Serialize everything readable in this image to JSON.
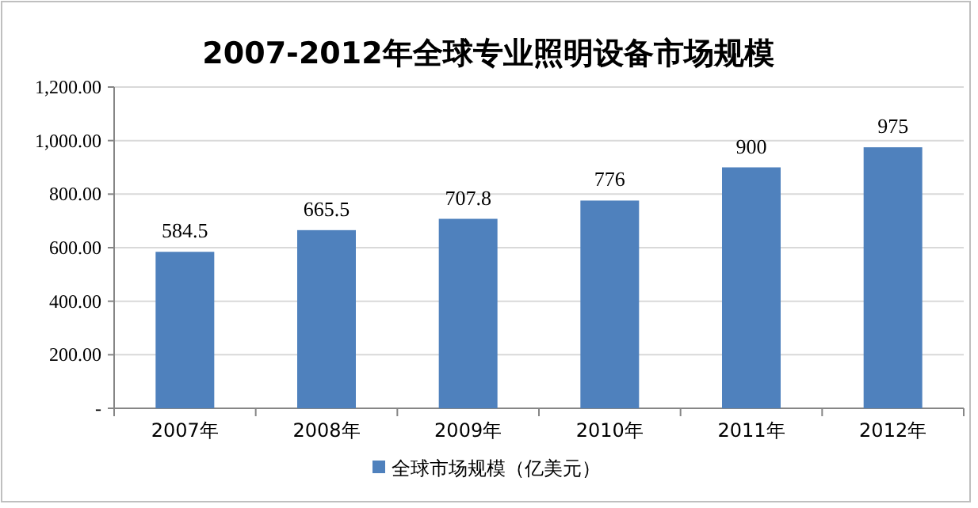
{
  "chart_data": {
    "type": "bar",
    "title": "2007-2012年全球专业照明设备市场规模",
    "categories": [
      "2007年",
      "2008年",
      "2009年",
      "2010年",
      "2011年",
      "2012年"
    ],
    "series": [
      {
        "name": "全球市场规模（亿美元）",
        "color": "#4f81bd",
        "values": [
          584.5,
          665.5,
          707.8,
          776,
          900,
          975
        ]
      }
    ],
    "ylim": [
      0,
      1200
    ],
    "yticks": [
      {
        "value": 0,
        "label": "-"
      },
      {
        "value": 200,
        "label": "200.00"
      },
      {
        "value": 400,
        "label": "400.00"
      },
      {
        "value": 600,
        "label": "600.00"
      },
      {
        "value": 800,
        "label": "800.00"
      },
      {
        "value": 1000,
        "label": "1,000.00"
      },
      {
        "value": 1200,
        "label": "1,200.00"
      }
    ],
    "grid": "y",
    "legend": "bottom",
    "data_labels": true
  }
}
